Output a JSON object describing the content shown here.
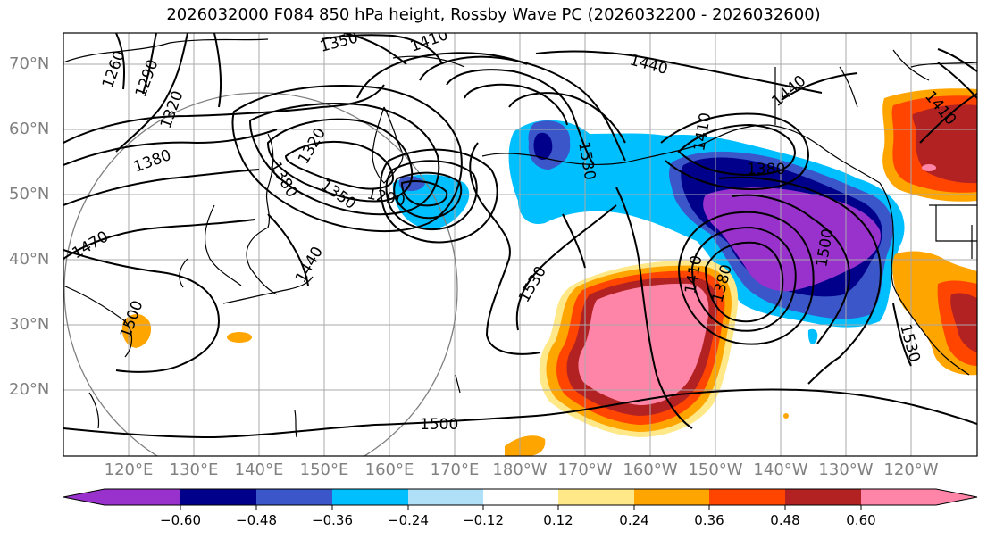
{
  "title": "2026032000 F084 850 hPa height, Rossby Wave PC (2026032200 - 2026032600)",
  "map": {
    "lat_labels": [
      "70°N",
      "60°N",
      "50°N",
      "40°N",
      "30°N",
      "20°N"
    ],
    "lon_labels": [
      "120°E",
      "130°E",
      "140°E",
      "150°E",
      "160°E",
      "170°E",
      "180°W",
      "170°W",
      "160°W",
      "150°W",
      "140°W",
      "130°W",
      "120°W"
    ],
    "contour_labels": [
      "1350",
      "1410",
      "1440",
      "1260",
      "1290",
      "1320",
      "1440",
      "1410",
      "1380",
      "1320",
      "1380",
      "1380",
      "1350",
      "1290",
      "1530",
      "1470",
      "1440",
      "1530",
      "1410",
      "1380",
      "1500",
      "1500",
      "1530",
      "1500",
      "1410"
    ]
  },
  "colorbar": {
    "ticks": [
      "−0.60",
      "−0.48",
      "−0.36",
      "−0.24",
      "−0.12",
      "0.12",
      "0.24",
      "0.36",
      "0.48",
      "0.60"
    ],
    "colors": [
      "#9932cc",
      "#00008b",
      "#3a56c8",
      "#00bfff",
      "#b0e0f8",
      "#ffffff",
      "#ffe888",
      "#ffa500",
      "#ff4500",
      "#b22222",
      "#ff85a8"
    ]
  }
}
